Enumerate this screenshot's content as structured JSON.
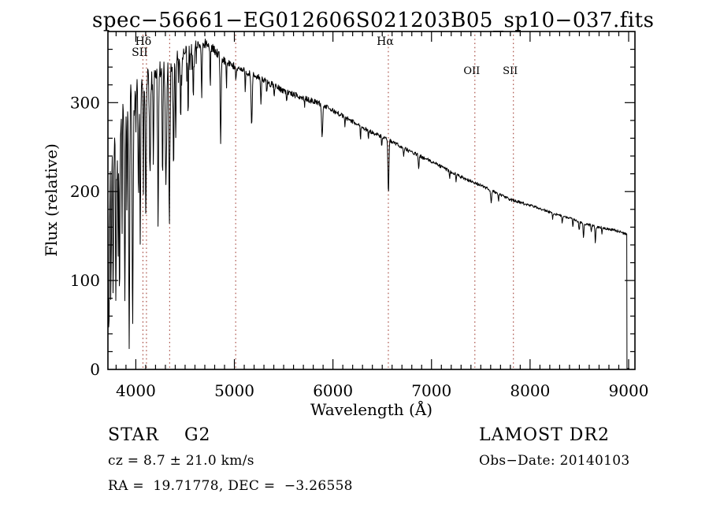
{
  "figure": {
    "title": "spec−56661−EG012606S021203B05_sp10−037.fits",
    "annotations": {
      "class_label": "STAR    G2",
      "survey": "LAMOST DR2",
      "cz": "cz = 8.7 ± 21.0 km/s",
      "obs_date": "Obs−Date: 20140103",
      "ra_dec": "RA =  19.71778, DEC =  −3.26558"
    },
    "colors": {
      "background": "#ffffff",
      "axis": "#000000",
      "spectrum": "#000000",
      "marker_line": "#9b3328"
    }
  },
  "chart_data": {
    "type": "line",
    "title": "spec−56661−EG012606S021203B05_sp10−037.fits",
    "xlabel": "Wavelength (Å)",
    "ylabel": "Flux (relative)",
    "xlim": [
      3717,
      9064
    ],
    "ylim": [
      0,
      380
    ],
    "x_ticks_major": [
      4000,
      5000,
      6000,
      7000,
      8000,
      9000
    ],
    "x_tick_minor_step": 100,
    "y_ticks_major": [
      0,
      100,
      200,
      300
    ],
    "y_tick_minor_step": 20,
    "grid": false,
    "legend": null,
    "line_markers": [
      {
        "wavelength": 4072,
        "label": "SII",
        "label_row": 1
      },
      {
        "wavelength": 4108,
        "label": "Hδ",
        "label_row": 0
      },
      {
        "wavelength": 4343,
        "label": "",
        "label_row": 0
      },
      {
        "wavelength": 5013,
        "label": "",
        "label_row": 0
      },
      {
        "wavelength": 6562,
        "label": "Hα",
        "label_row": 0
      },
      {
        "wavelength": 7440,
        "label": "OII",
        "label_row": 2
      },
      {
        "wavelength": 7831,
        "label": "SII",
        "label_row": 2
      }
    ],
    "spectrum": {
      "start_wavelength": 3717,
      "end_wavelength": 8982,
      "end_drop_to_flux": 0,
      "envelope": [
        [
          3717,
          145
        ],
        [
          3730,
          185
        ],
        [
          3745,
          215
        ],
        [
          3760,
          235
        ],
        [
          3780,
          252
        ],
        [
          3810,
          268
        ],
        [
          3840,
          282
        ],
        [
          3880,
          298
        ],
        [
          3920,
          308
        ],
        [
          3960,
          312
        ],
        [
          4000,
          318
        ],
        [
          4060,
          323
        ],
        [
          4120,
          328
        ],
        [
          4200,
          334
        ],
        [
          4300,
          341
        ],
        [
          4400,
          350
        ],
        [
          4500,
          359
        ],
        [
          4600,
          365
        ],
        [
          4700,
          366
        ],
        [
          4780,
          361
        ],
        [
          4850,
          352
        ],
        [
          4950,
          343
        ],
        [
          5050,
          338
        ],
        [
          5150,
          333
        ],
        [
          5250,
          328
        ],
        [
          5400,
          319
        ],
        [
          5550,
          311
        ],
        [
          5700,
          305
        ],
        [
          5850,
          300
        ],
        [
          6000,
          291
        ],
        [
          6150,
          282
        ],
        [
          6300,
          272
        ],
        [
          6450,
          264
        ],
        [
          6600,
          256
        ],
        [
          6750,
          247
        ],
        [
          6900,
          239
        ],
        [
          7050,
          231
        ],
        [
          7200,
          222
        ],
        [
          7350,
          214
        ],
        [
          7500,
          207
        ],
        [
          7650,
          199
        ],
        [
          7800,
          191
        ],
        [
          7950,
          186
        ],
        [
          8100,
          181
        ],
        [
          8250,
          175
        ],
        [
          8400,
          170
        ],
        [
          8550,
          164
        ],
        [
          8700,
          160
        ],
        [
          8850,
          157
        ],
        [
          8982,
          152
        ]
      ],
      "absorption_lines": [
        [
          3727,
          50,
          4
        ],
        [
          3750,
          120,
          3
        ],
        [
          3770,
          95,
          4
        ],
        [
          3798,
          105,
          4
        ],
        [
          3820,
          115,
          3
        ],
        [
          3835,
          75,
          4
        ],
        [
          3860,
          150,
          3
        ],
        [
          3889,
          85,
          5
        ],
        [
          3910,
          165,
          3
        ],
        [
          3933,
          22,
          5
        ],
        [
          3968,
          45,
          5
        ],
        [
          4026,
          205,
          4
        ],
        [
          4045,
          150,
          4
        ],
        [
          4077,
          195,
          3
        ],
        [
          4102,
          175,
          5
        ],
        [
          4144,
          215,
          4
        ],
        [
          4178,
          235,
          4
        ],
        [
          4226,
          165,
          4
        ],
        [
          4271,
          215,
          4
        ],
        [
          4305,
          205,
          6
        ],
        [
          4340,
          162,
          5
        ],
        [
          4383,
          225,
          4
        ],
        [
          4405,
          255,
          4
        ],
        [
          4455,
          275,
          4
        ],
        [
          4531,
          295,
          4
        ],
        [
          4584,
          305,
          4
        ],
        [
          4668,
          305,
          4
        ],
        [
          4755,
          315,
          3
        ],
        [
          4861,
          253,
          5
        ],
        [
          4920,
          315,
          3
        ],
        [
          5015,
          322,
          3
        ],
        [
          5110,
          315,
          3
        ],
        [
          5175,
          273,
          6
        ],
        [
          5270,
          297,
          4
        ],
        [
          5328,
          310,
          3
        ],
        [
          5405,
          305,
          3
        ],
        [
          5530,
          302,
          3
        ],
        [
          5712,
          297,
          3
        ],
        [
          5890,
          263,
          6
        ],
        [
          6122,
          272,
          3
        ],
        [
          6280,
          260,
          3
        ],
        [
          6360,
          257,
          3
        ],
        [
          6495,
          250,
          3
        ],
        [
          6563,
          197,
          5
        ],
        [
          6717,
          240,
          3
        ],
        [
          6870,
          224,
          4
        ],
        [
          7185,
          214,
          3
        ],
        [
          7250,
          212,
          3
        ],
        [
          7605,
          188,
          5
        ],
        [
          7680,
          190,
          3
        ],
        [
          8230,
          169,
          3
        ],
        [
          8327,
          164,
          3
        ],
        [
          8434,
          161,
          3
        ],
        [
          8498,
          156,
          4
        ],
        [
          8542,
          147,
          4
        ],
        [
          8620,
          153,
          3
        ],
        [
          8662,
          142,
          4
        ],
        [
          8730,
          153,
          3
        ]
      ],
      "noise_amplitude": [
        [
          3717,
          55
        ],
        [
          3770,
          42
        ],
        [
          3820,
          36
        ],
        [
          3880,
          31
        ],
        [
          3940,
          27
        ],
        [
          4000,
          25
        ],
        [
          4100,
          22
        ],
        [
          4200,
          20
        ],
        [
          4300,
          18
        ],
        [
          4450,
          15
        ],
        [
          4600,
          13
        ],
        [
          4800,
          11
        ],
        [
          5000,
          9
        ],
        [
          5250,
          8
        ],
        [
          5500,
          7
        ],
        [
          5800,
          6
        ],
        [
          6100,
          5.2
        ],
        [
          6500,
          4.5
        ],
        [
          7000,
          4
        ],
        [
          7500,
          3.5
        ],
        [
          8000,
          3.2
        ],
        [
          8600,
          3
        ],
        [
          8982,
          3
        ]
      ]
    }
  }
}
